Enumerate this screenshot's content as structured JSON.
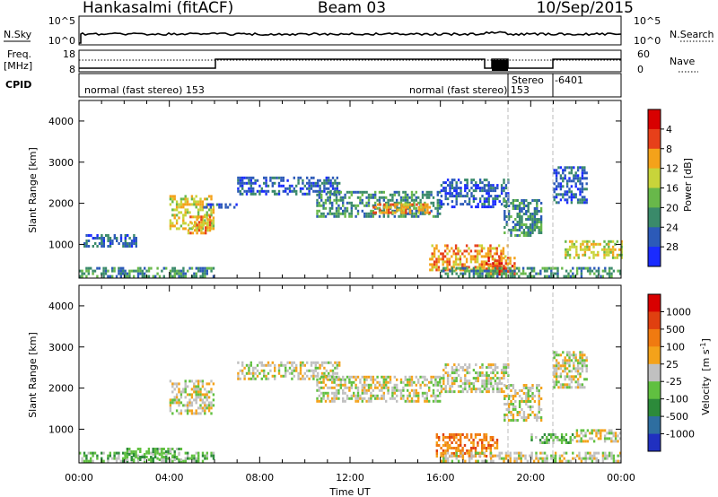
{
  "header": {
    "station": "Hankasalmi (fitACF)",
    "beam": "Beam 03",
    "date": "10/Sep/2015"
  },
  "noise_panel": {
    "left_label": "N.Sky",
    "right_label": "N.Search",
    "left_ticks": [
      "10^5",
      "10^0"
    ],
    "right_ticks": [
      "10^5",
      "10^0"
    ]
  },
  "freq_panel": {
    "left_label_line1": "Freq.",
    "left_label_line2": "[MHz]",
    "right_label": "Nave",
    "left_ticks": [
      "18",
      "8"
    ],
    "right_ticks": [
      "60",
      "0"
    ]
  },
  "cpid_panel": {
    "label": "CPID",
    "segments": [
      "normal (fast stereo) 153",
      "normal (fast stereo) 153",
      "Stereo",
      "-6401"
    ]
  },
  "chart_data": [
    {
      "type": "heatmap",
      "name": "power",
      "ylabel": "Slant Range [km]",
      "y_ticks": [
        "1000",
        "2000",
        "3000",
        "4000"
      ],
      "ylim": [
        180,
        4500
      ],
      "xlim": [
        0,
        24
      ],
      "colorbar_label": "Power [dB]",
      "colorbar_ticks": [
        "4",
        "8",
        "12",
        "16",
        "20",
        "24",
        "28"
      ],
      "colorbar_colors": [
        "#1a2bff",
        "#2c5ab8",
        "#3a8a6a",
        "#68b84a",
        "#c8d43a",
        "#f4a21a",
        "#e7401a",
        "#d80000"
      ],
      "echo_regions": [
        {
          "t0": 0.0,
          "t1": 6.0,
          "r0": 200,
          "r1": 450,
          "level": 2
        },
        {
          "t0": 0.2,
          "t1": 2.6,
          "r0": 950,
          "r1": 1250,
          "level": 1
        },
        {
          "t0": 4.0,
          "t1": 6.0,
          "r0": 1400,
          "r1": 2200,
          "level": 4
        },
        {
          "t0": 4.8,
          "t1": 5.8,
          "r0": 1300,
          "r1": 1700,
          "level": 5
        },
        {
          "t0": 5.5,
          "t1": 7.0,
          "r0": 1900,
          "r1": 2000,
          "level": 1
        },
        {
          "t0": 7.0,
          "t1": 11.5,
          "r0": 2200,
          "r1": 2650,
          "level": 1
        },
        {
          "t0": 10.5,
          "t1": 16.0,
          "r0": 1700,
          "r1": 2300,
          "level": 2
        },
        {
          "t0": 13.0,
          "t1": 15.5,
          "r0": 1750,
          "r1": 2000,
          "level": 5
        },
        {
          "t0": 16.0,
          "t1": 19.0,
          "r0": 1900,
          "r1": 2600,
          "level": 1
        },
        {
          "t0": 15.5,
          "t1": 19.0,
          "r0": 400,
          "r1": 1000,
          "level": 5
        },
        {
          "t0": 18.0,
          "t1": 19.3,
          "r0": 300,
          "r1": 700,
          "level": 6
        },
        {
          "t0": 18.8,
          "t1": 20.5,
          "r0": 1200,
          "r1": 2100,
          "level": 2
        },
        {
          "t0": 21.0,
          "t1": 22.5,
          "r0": 2000,
          "r1": 2900,
          "level": 1
        },
        {
          "t0": 21.5,
          "t1": 24.0,
          "r0": 700,
          "r1": 1100,
          "level": 4
        },
        {
          "t0": 16.0,
          "t1": 24.0,
          "r0": 200,
          "r1": 450,
          "level": 2
        }
      ]
    },
    {
      "type": "heatmap",
      "name": "velocity",
      "ylabel": "Slant Range [km]",
      "y_ticks": [
        "1000",
        "2000",
        "3000",
        "4000"
      ],
      "ylim": [
        180,
        4500
      ],
      "xlim": [
        0,
        24
      ],
      "colorbar_label": "Velocity",
      "colorbar_label_unit": "[m s",
      "colorbar_label_exp": "-1",
      "colorbar_label_close": "]",
      "colorbar_ticks": [
        "1000",
        "500",
        "100",
        "25",
        "-25",
        "-100",
        "-500",
        "-1000"
      ],
      "colorbar_colors": [
        "#2030c0",
        "#2e6ea0",
        "#2c8a3a",
        "#60c040",
        "#c0c0c0",
        "#f4a21a",
        "#f07a10",
        "#e04010",
        "#d80000"
      ],
      "echo_regions": [
        {
          "t0": 0.0,
          "t1": 6.0,
          "r0": 200,
          "r1": 450,
          "level": 3
        },
        {
          "t0": 2.0,
          "t1": 4.5,
          "r0": 250,
          "r1": 550,
          "level": 3
        },
        {
          "t0": 4.0,
          "t1": 6.0,
          "r0": 1400,
          "r1": 2200,
          "level": 4
        },
        {
          "t0": 7.0,
          "t1": 11.5,
          "r0": 2200,
          "r1": 2650,
          "level": 4
        },
        {
          "t0": 10.5,
          "t1": 16.0,
          "r0": 1700,
          "r1": 2300,
          "level": 4
        },
        {
          "t0": 16.0,
          "t1": 19.0,
          "r0": 1900,
          "r1": 2600,
          "level": 4
        },
        {
          "t0": 15.8,
          "t1": 18.5,
          "r0": 350,
          "r1": 900,
          "level": 6
        },
        {
          "t0": 18.8,
          "t1": 20.5,
          "r0": 1200,
          "r1": 2100,
          "level": 4
        },
        {
          "t0": 20.0,
          "t1": 22.0,
          "r0": 650,
          "r1": 900,
          "level": 3
        },
        {
          "t0": 21.0,
          "t1": 22.5,
          "r0": 2000,
          "r1": 2900,
          "level": 4
        },
        {
          "t0": 22.0,
          "t1": 24.0,
          "r0": 700,
          "r1": 1000,
          "level": 4
        },
        {
          "t0": 16.0,
          "t1": 24.0,
          "r0": 200,
          "r1": 450,
          "level": 4
        }
      ]
    }
  ],
  "x_axis": {
    "label": "Time UT",
    "ticks": [
      "00:00",
      "04:00",
      "08:00",
      "12:00",
      "16:00",
      "20:00",
      "00:00"
    ]
  }
}
